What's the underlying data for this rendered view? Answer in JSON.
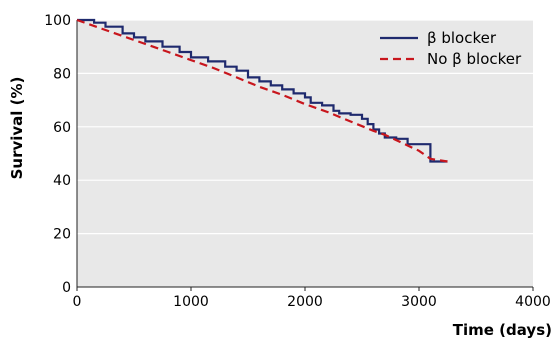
{
  "chart_data": {
    "type": "line",
    "title": "",
    "xlabel": "Time (days)",
    "ylabel": "Survival (%)",
    "xlim": [
      0,
      4000
    ],
    "ylim": [
      0,
      100
    ],
    "xticks": [
      0,
      1000,
      2000,
      3000,
      4000
    ],
    "yticks": [
      0,
      20,
      40,
      60,
      80,
      100
    ],
    "grid": "horizontal",
    "legend_position": "top-right",
    "series": [
      {
        "name": "β blocker",
        "color": "#1f2a6e",
        "style": "solid",
        "step": true,
        "x": [
          0,
          150,
          250,
          400,
          500,
          600,
          750,
          900,
          1000,
          1150,
          1300,
          1400,
          1500,
          1600,
          1700,
          1800,
          1900,
          2000,
          2050,
          2150,
          2250,
          2300,
          2400,
          2500,
          2550,
          2600,
          2650,
          2700,
          2800,
          2900,
          3100,
          3250
        ],
        "y": [
          100,
          99,
          97.5,
          95,
          93.5,
          92,
          90,
          88,
          86,
          84.5,
          82.5,
          81,
          78.5,
          77,
          75.5,
          74,
          72.5,
          71,
          69,
          68,
          66,
          65,
          64.5,
          63,
          61,
          59,
          57.5,
          56,
          55.5,
          53.5,
          47,
          47
        ]
      },
      {
        "name": "No β blocker",
        "color": "#c8161d",
        "style": "dashed",
        "step": false,
        "x": [
          0,
          200,
          400,
          600,
          800,
          1000,
          1200,
          1400,
          1600,
          1800,
          2000,
          2200,
          2400,
          2600,
          2700,
          2800,
          2900,
          3000,
          3100,
          3250
        ],
        "y": [
          100,
          97,
          94,
          91,
          88,
          85,
          82,
          78.5,
          75,
          72,
          68.5,
          65.5,
          62,
          58.5,
          57,
          55,
          53,
          51,
          48,
          47
        ]
      }
    ]
  }
}
